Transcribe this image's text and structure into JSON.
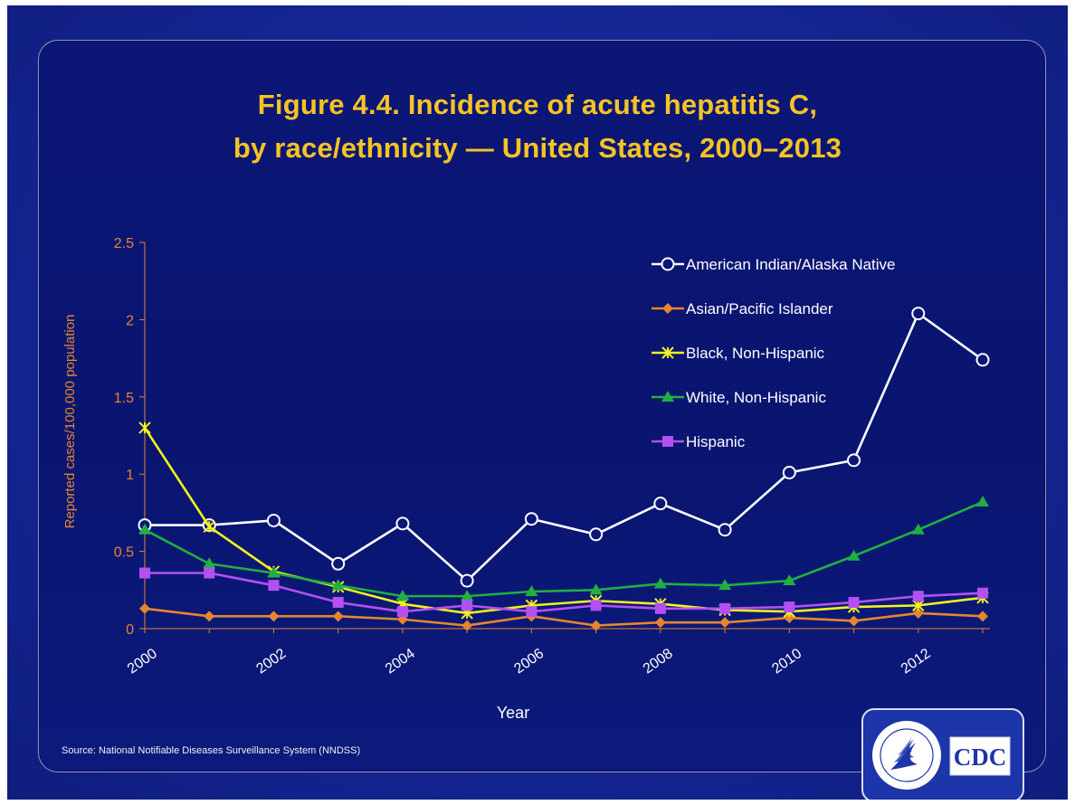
{
  "chart_data": {
    "type": "line",
    "title": "Figure 4.4. Incidence of acute hepatitis C,",
    "subtitle": "by race/ethnicity — United States, 2000–2013",
    "xlabel": "Year",
    "ylabel": "Reported cases/100,000 population",
    "ylim": [
      0,
      2.5
    ],
    "yticks": [
      "0",
      "0.5",
      "1",
      "1.5",
      "2",
      "2.5"
    ],
    "xticks": [
      "2000",
      "2002",
      "2004",
      "2006",
      "2008",
      "2010",
      "2012"
    ],
    "x": [
      2000,
      2001,
      2002,
      2003,
      2004,
      2005,
      2006,
      2007,
      2008,
      2009,
      2010,
      2011,
      2012,
      2013
    ],
    "grid": false,
    "legend_position": "top-right",
    "series": [
      {
        "name": "American Indian/Alaska Native",
        "marker": "open-circle",
        "color": "#ffffff",
        "values": [
          0.67,
          0.67,
          0.7,
          0.42,
          0.68,
          0.31,
          0.71,
          0.61,
          0.81,
          0.64,
          1.01,
          1.09,
          2.04,
          1.74
        ]
      },
      {
        "name": "Asian/Pacific Islander",
        "marker": "diamond",
        "color": "#e5862e",
        "values": [
          0.13,
          0.08,
          0.08,
          0.08,
          0.06,
          0.02,
          0.08,
          0.02,
          0.04,
          0.04,
          0.07,
          0.05,
          0.1,
          0.08
        ]
      },
      {
        "name": "Black, Non-Hispanic",
        "marker": "star",
        "color": "#f2f21e",
        "values": [
          1.3,
          0.66,
          0.37,
          0.27,
          0.16,
          0.1,
          0.15,
          0.18,
          0.16,
          0.12,
          0.11,
          0.14,
          0.15,
          0.2
        ]
      },
      {
        "name": "White, Non-Hispanic",
        "marker": "triangle",
        "color": "#1fb041",
        "values": [
          0.64,
          0.42,
          0.36,
          0.28,
          0.21,
          0.21,
          0.24,
          0.25,
          0.29,
          0.28,
          0.31,
          0.47,
          0.64,
          0.82
        ]
      },
      {
        "name": "Hispanic",
        "marker": "square",
        "color": "#b350f2",
        "values": [
          0.36,
          0.36,
          0.28,
          0.17,
          0.11,
          0.15,
          0.11,
          0.15,
          0.13,
          0.13,
          0.14,
          0.17,
          0.21,
          0.23
        ]
      }
    ],
    "axis_color": "#e5862e",
    "source": "Source: National Notifiable Diseases Surveillance System (NNDSS)"
  },
  "logo": {
    "text": "CDC",
    "icon": "hhs-eagle-icon"
  }
}
